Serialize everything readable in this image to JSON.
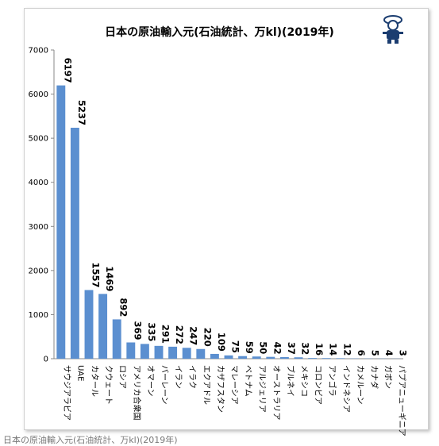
{
  "caption": "日本の原油輸入元(石油統計、万kl)(2019年)",
  "mascot_icon": "cartoon-mascot-icon",
  "chart_data": {
    "type": "bar",
    "title": "日本の原油輸入元(石油統計、万kl)(2019年)",
    "xlabel": "",
    "ylabel": "",
    "ylim": [
      0,
      7000
    ],
    "yticks": [
      "0",
      "1000",
      "2000",
      "3000",
      "4000",
      "5000",
      "6000",
      "7000"
    ],
    "grid": false,
    "legend": "none",
    "bar_color": "#5b8fd0",
    "categories": [
      "サウジアラビア",
      "UAE",
      "カタール",
      "クウェート",
      "ロシア",
      "アメリカ合衆国",
      "オマーン",
      "バーレーン",
      "イラン",
      "イラク",
      "エクアドル",
      "カザフスタン",
      "マレーシア",
      "ベトナム",
      "アルジェリア",
      "オーストラリア",
      "ブルネイ",
      "メキシコ",
      "コロンビア",
      "アンゴラ",
      "インドネシア",
      "カメルーン",
      "カナダ",
      "ガボン",
      "パプアニューギニア"
    ],
    "values": [
      6197,
      5237,
      1557,
      1469,
      892,
      369,
      335,
      291,
      272,
      247,
      220,
      109,
      75,
      59,
      50,
      42,
      37,
      32,
      16,
      14,
      12,
      6,
      5,
      4,
      3
    ]
  }
}
